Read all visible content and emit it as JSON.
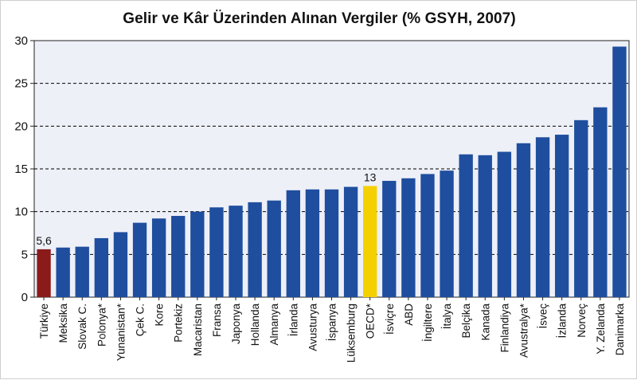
{
  "chart_data": {
    "type": "bar",
    "title": "Gelir ve Kâr Üzerinden Alınan Vergiler (% GSYH, 2007)",
    "xlabel": "",
    "ylabel": "",
    "ylim": [
      0,
      30
    ],
    "yticks": [
      0,
      5,
      10,
      15,
      20,
      25,
      30
    ],
    "grid": true,
    "categories": [
      "Türkiye",
      "Meksika",
      "Slovak C.",
      "Polonya*",
      "Yunanistan*",
      "Çek C.",
      "Kore",
      "Portekiz",
      "Macaristan",
      "Fransa",
      "Japonya",
      "Hollanda",
      "Almanya",
      "İrlanda",
      "Avusturya",
      "İspanya",
      "Lüksemburg",
      "OECD*",
      "İsviçre",
      "ABD",
      "İngiltere",
      "İtalya",
      "Belçika",
      "Kanada",
      "Finlandiya",
      "Avustralya*",
      "İsveç",
      "İzlanda",
      "Norveç",
      "Y. Zelanda",
      "Danimarka"
    ],
    "values": [
      5.6,
      5.8,
      5.9,
      6.9,
      7.6,
      8.7,
      9.2,
      9.5,
      10.0,
      10.5,
      10.7,
      11.1,
      11.3,
      12.5,
      12.6,
      12.6,
      12.9,
      13.0,
      13.6,
      13.9,
      14.4,
      14.8,
      16.7,
      16.6,
      17.0,
      18.0,
      18.7,
      19.0,
      20.7,
      22.2,
      29.3
    ],
    "data_labels": [
      {
        "category": "Türkiye",
        "text": "5,6"
      },
      {
        "category": "OECD*",
        "text": "13"
      }
    ],
    "colors": {
      "default": "#1f4e9e",
      "highlight_turkey": "#8b1a1a",
      "highlight_oecd": "#f5d000",
      "plot_background": "#eef0f8",
      "grid": "#000000"
    },
    "highlights": {
      "Türkiye": "highlight_turkey",
      "OECD*": "highlight_oecd"
    }
  }
}
